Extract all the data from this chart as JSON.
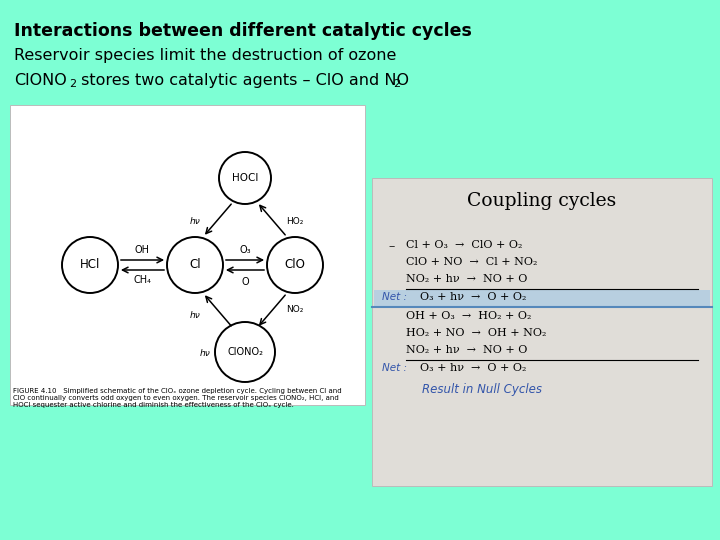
{
  "bg_color": "#7dffd4",
  "title1": "Interactions between different catalytic cycles",
  "title2": "Reservoir species limit the destruction of ozone",
  "coupling_title": "Coupling cycles",
  "result_text": "Result in Null Cycles"
}
